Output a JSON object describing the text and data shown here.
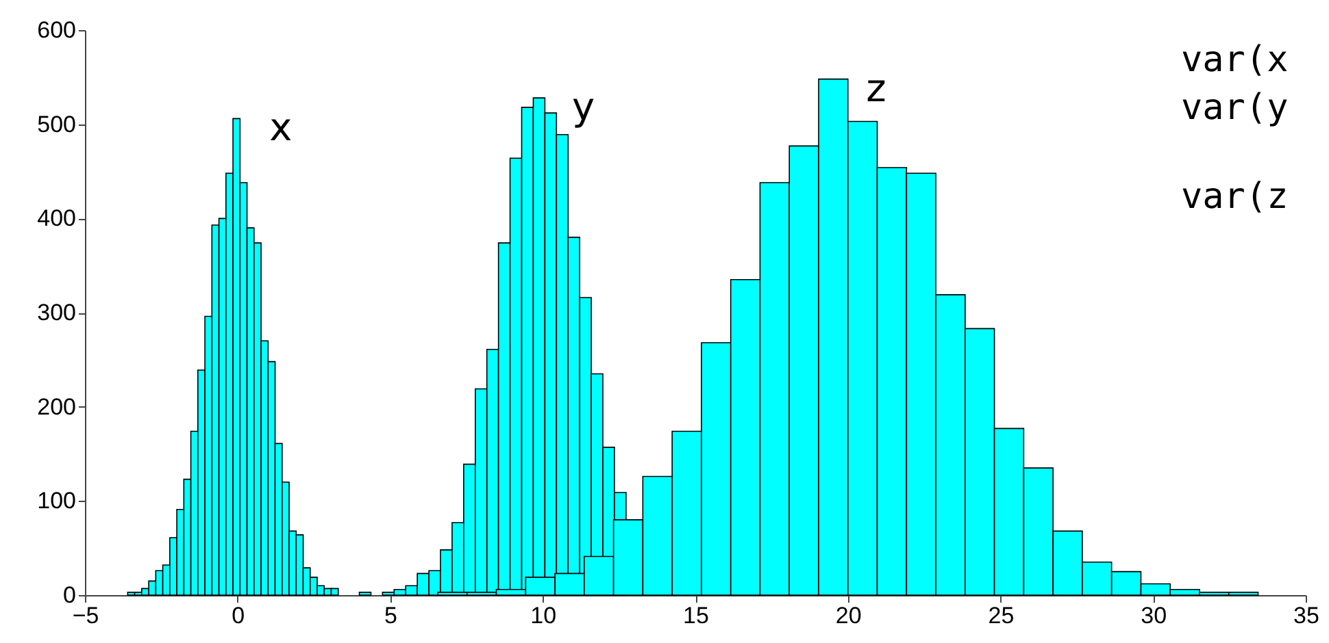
{
  "chart_data": {
    "type": "bar",
    "series": [
      {
        "name": "x",
        "color": "#00ffff",
        "x": [
          -3.485,
          -3.255,
          -3.025,
          -2.795,
          -2.565,
          -2.335,
          -2.105,
          -1.875,
          -1.645,
          -1.415,
          -1.185,
          -0.955,
          -0.725,
          -0.495,
          -0.265,
          -0.035,
          0.195,
          0.425,
          0.655,
          0.885,
          1.115,
          1.345,
          1.575,
          1.805,
          2.035,
          2.265,
          2.495,
          2.725,
          2.955,
          3.185
        ],
        "values": [
          3,
          3,
          7,
          15,
          26,
          32,
          61,
          91,
          123,
          174,
          239,
          296,
          393,
          400,
          448,
          506,
          438,
          390,
          374,
          270,
          248,
          161,
          120,
          68,
          64,
          29,
          19,
          10,
          7,
          7
        ]
      },
      {
        "name": "y",
        "color": "#00ffff",
        "x": [
          4.18,
          4.56,
          4.94,
          5.32,
          5.7,
          6.08,
          6.46,
          6.84,
          7.22,
          7.6,
          7.98,
          8.36,
          8.74,
          9.12,
          9.5,
          9.88,
          10.26,
          10.64,
          11.02,
          11.4,
          11.78,
          12.16,
          12.54
        ],
        "values": [
          3,
          null,
          3,
          6,
          10,
          23,
          26,
          48,
          77,
          139,
          219,
          261,
          374,
          464,
          518,
          528,
          512,
          489,
          380,
          316,
          235,
          157,
          109
        ]
      },
      {
        "name": "z",
        "color": "#00ffff",
        "x": [
          7.04,
          8.0,
          8.96,
          9.92,
          10.88,
          11.84,
          12.8,
          13.76,
          14.72,
          15.68,
          16.64,
          17.6,
          18.56,
          19.52,
          20.48,
          21.44,
          22.4,
          23.36,
          24.32,
          25.28,
          26.24,
          27.2,
          28.16,
          29.12,
          30.08,
          31.04,
          32.0,
          32.96
        ],
        "values": [
          3,
          3,
          6,
          19,
          23,
          41,
          80,
          126,
          174,
          268,
          335,
          438,
          477,
          548,
          503,
          454,
          448,
          319,
          283,
          177,
          135,
          68,
          35,
          25,
          12,
          6,
          3,
          3
        ]
      }
    ],
    "xlim": [
      -5,
      35
    ],
    "ylim": [
      0,
      600
    ],
    "xticks": [
      -5,
      0,
      5,
      10,
      15,
      20,
      25,
      30,
      35
    ],
    "yticks": [
      0,
      100,
      200,
      300,
      400,
      500,
      600
    ],
    "annotations": [
      "var(x",
      "var(y",
      "var(z"
    ]
  }
}
